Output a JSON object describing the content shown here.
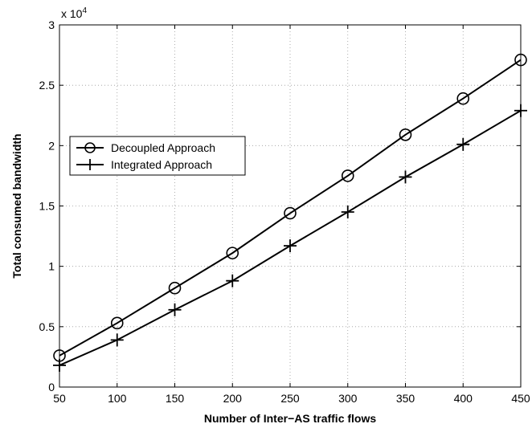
{
  "chart_data": {
    "type": "line",
    "title": "",
    "xlabel": "Number of Inter−AS traffic flows",
    "ylabel": "Total consumed bandwidth",
    "y_scale_label": "x 10",
    "y_scale_exponent": "4",
    "x": [
      50,
      100,
      150,
      200,
      250,
      300,
      350,
      400,
      450
    ],
    "xlim": [
      50,
      450
    ],
    "ylim": [
      0,
      3
    ],
    "x_ticks": [
      "50",
      "100",
      "150",
      "200",
      "250",
      "300",
      "350",
      "400",
      "450"
    ],
    "y_ticks": [
      "0",
      "0.5",
      "1",
      "1.5",
      "2",
      "2.5",
      "3"
    ],
    "grid": true,
    "legend_position": "center-left",
    "series": [
      {
        "name": "Decoupled Approach",
        "marker": "circle",
        "color": "#000000",
        "values": [
          0.26,
          0.53,
          0.82,
          1.11,
          1.44,
          1.75,
          2.09,
          2.39,
          2.71
        ]
      },
      {
        "name": "Integrated Approach",
        "marker": "plus",
        "color": "#000000",
        "values": [
          0.18,
          0.39,
          0.64,
          0.88,
          1.17,
          1.45,
          1.74,
          2.01,
          2.29
        ]
      }
    ]
  }
}
